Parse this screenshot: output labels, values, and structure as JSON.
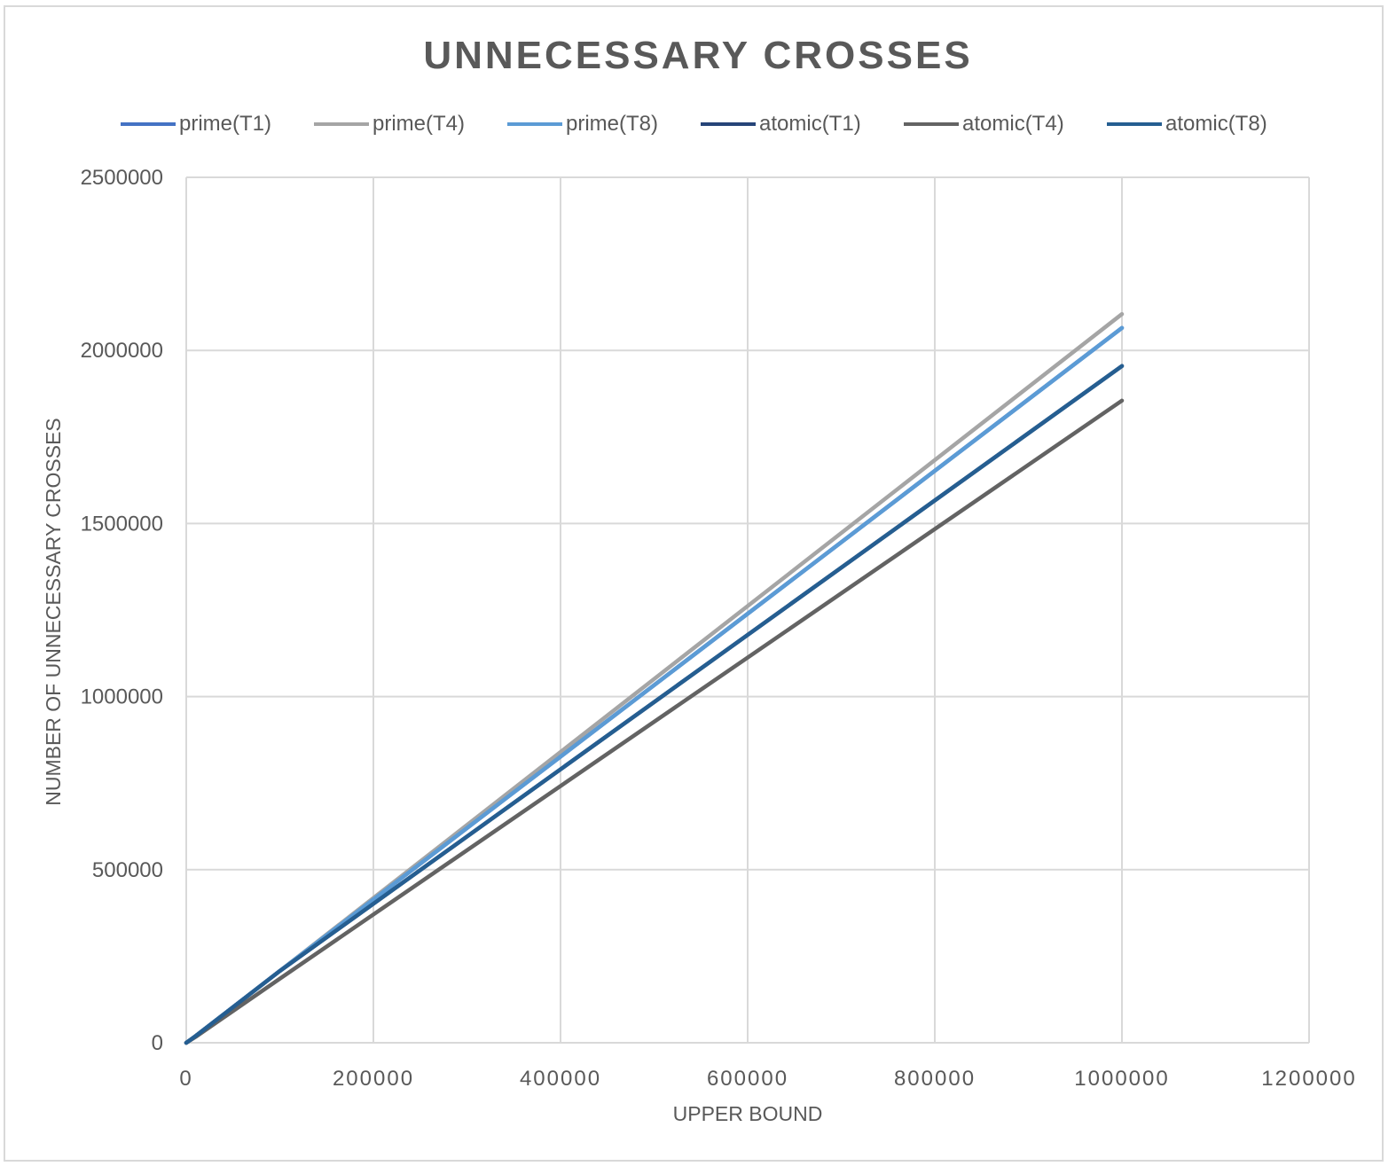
{
  "chart_data": {
    "type": "line",
    "title": "UNNECESSARY CROSSES",
    "xlabel": "UPPER BOUND",
    "ylabel": "NUMBER OF UNNECESSARY CROSSES",
    "xlim": [
      0,
      1200000
    ],
    "ylim": [
      0,
      2500000
    ],
    "x_ticks": [
      "0",
      "200000",
      "400000",
      "600000",
      "800000",
      "1000000",
      "1200000"
    ],
    "y_ticks": [
      "0",
      "500000",
      "1000000",
      "1500000",
      "2000000",
      "2500000"
    ],
    "grid": true,
    "legend_position": "top",
    "x": [
      0,
      1000,
      10000,
      100000,
      1000000
    ],
    "series": [
      {
        "name": "prime(T1)",
        "color": "#4472c4",
        "values": [
          0,
          1720,
          19400,
          207400,
          2065000
        ]
      },
      {
        "name": "prime(T4)",
        "color": "#a5a5a5",
        "values": [
          0,
          1720,
          19400,
          207400,
          2105000
        ]
      },
      {
        "name": "prime(T8)",
        "color": "#5b9bd5",
        "values": [
          0,
          1720,
          19400,
          207400,
          2065000
        ]
      },
      {
        "name": "atomic(T1)",
        "color": "#264478",
        "values": [
          0,
          1720,
          19400,
          207400,
          1955000
        ]
      },
      {
        "name": "atomic(T4)",
        "color": "#636363",
        "values": [
          0,
          1500,
          17000,
          185000,
          1855000
        ]
      },
      {
        "name": "atomic(T8)",
        "color": "#255e91",
        "values": [
          0,
          1720,
          19400,
          207400,
          1955000
        ]
      }
    ]
  }
}
